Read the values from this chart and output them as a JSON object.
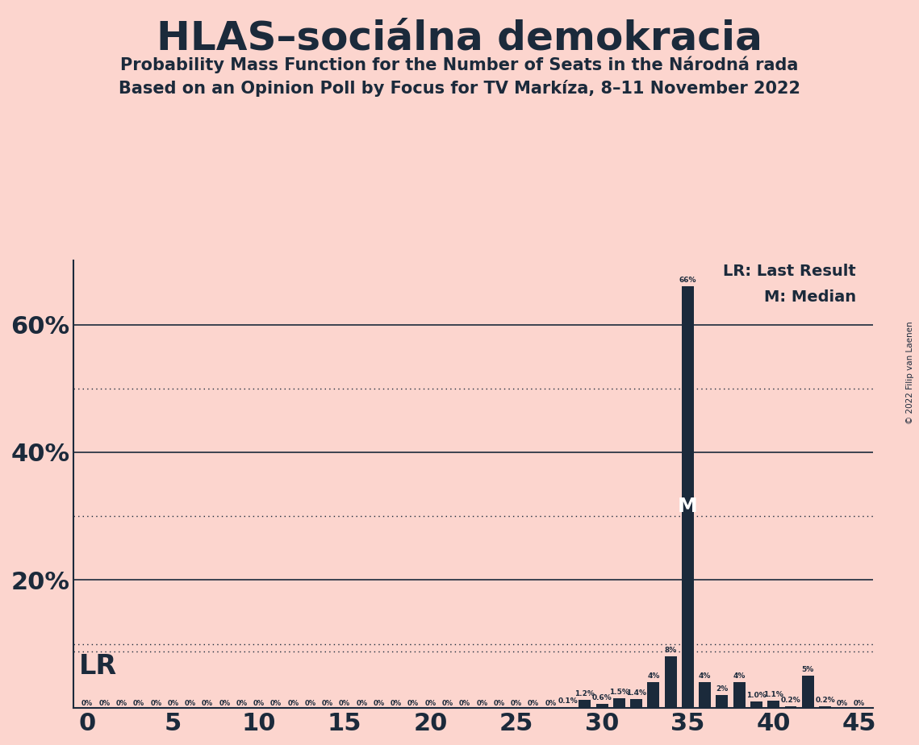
{
  "title": "HLAS–sociálna demokracia",
  "subtitle1": "Probability Mass Function for the Number of Seats in the Národná rada",
  "subtitle2": "Based on an Opinion Poll by Focus for TV Markíza, 8–11 November 2022",
  "copyright": "© 2022 Filip van Laenen",
  "background_color": "#fcd5ce",
  "bar_color": "#1b2a3b",
  "text_color": "#1b2a3b",
  "x_min": 0,
  "x_max": 45,
  "y_min": 0,
  "y_max": 0.7,
  "solid_yticks": [
    0.0,
    0.2,
    0.4,
    0.6
  ],
  "dotted_yticks": [
    0.1,
    0.3,
    0.5
  ],
  "lr_line": 0.088,
  "lr_seat": 35,
  "median_seat": 35,
  "seats": [
    0,
    1,
    2,
    3,
    4,
    5,
    6,
    7,
    8,
    9,
    10,
    11,
    12,
    13,
    14,
    15,
    16,
    17,
    18,
    19,
    20,
    21,
    22,
    23,
    24,
    25,
    26,
    27,
    28,
    29,
    30,
    31,
    32,
    33,
    34,
    35,
    36,
    37,
    38,
    39,
    40,
    41,
    42,
    43,
    44,
    45
  ],
  "probabilities": [
    0.0,
    0.0,
    0.0,
    0.0,
    0.0,
    0.0,
    0.0,
    0.0,
    0.0,
    0.0,
    0.0,
    0.0,
    0.0,
    0.0,
    0.0,
    0.0,
    0.0,
    0.0,
    0.0,
    0.0,
    0.0,
    0.0,
    0.0,
    0.0,
    0.0,
    0.0,
    0.0,
    0.0,
    0.001,
    0.012,
    0.006,
    0.015,
    0.014,
    0.04,
    0.08,
    0.66,
    0.04,
    0.02,
    0.04,
    0.01,
    0.011,
    0.002,
    0.05,
    0.002,
    0.0,
    0.0
  ],
  "bar_labels": [
    "0%",
    "0%",
    "0%",
    "0%",
    "0%",
    "0%",
    "0%",
    "0%",
    "0%",
    "0%",
    "0%",
    "0%",
    "0%",
    "0%",
    "0%",
    "0%",
    "0%",
    "0%",
    "0%",
    "0%",
    "0%",
    "0%",
    "0%",
    "0%",
    "0%",
    "0%",
    "0%",
    "0%",
    "0.1%",
    "1.2%",
    "0.6%",
    "1.5%",
    "1.4%",
    "4%",
    "8%",
    "66%",
    "4%",
    "2%",
    "4%",
    "1.0%",
    "1.1%",
    "0.2%",
    "5%",
    "0.2%",
    "0%",
    "0%"
  ],
  "lr_label": "LR",
  "median_label": "M",
  "legend_lr": "LR: Last Result",
  "legend_m": "M: Median"
}
